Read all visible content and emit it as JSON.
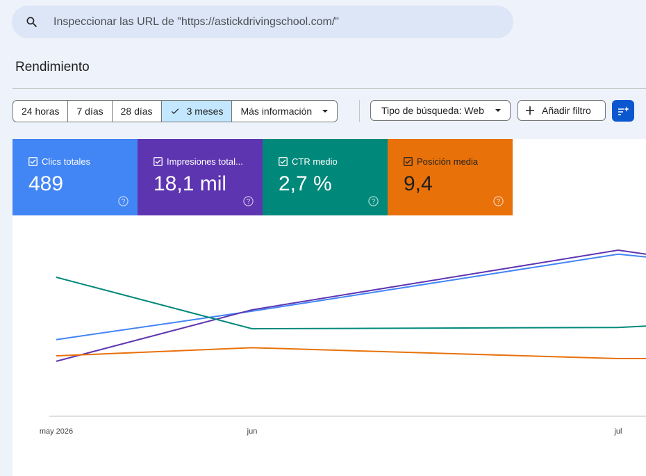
{
  "search": {
    "placeholder": "Inspeccionar las URL de \"https://astickdrivingschool.com/\""
  },
  "page_title": "Rendimiento",
  "date_ranges": {
    "options": [
      "24 horas",
      "7 días",
      "28 días",
      "3 meses",
      "Más información"
    ],
    "selected": "3 meses"
  },
  "search_type": "Tipo de búsqueda: Web",
  "add_filter": "Añadir filtro",
  "metrics": [
    {
      "label": "Clics totales",
      "value": "489",
      "color": "#4285f4",
      "checked": true
    },
    {
      "label": "Impresiones total...",
      "value": "18,1 mil",
      "color": "#5e35b1",
      "checked": true
    },
    {
      "label": "CTR medio",
      "value": "2,7 %",
      "color": "#00897b",
      "checked": true
    },
    {
      "label": "Posición media",
      "value": "9,4",
      "color": "#e8710a",
      "checked": true
    }
  ],
  "chart_data": {
    "type": "line",
    "x": [
      "may 2026",
      "jun",
      "jul",
      ""
    ],
    "x_ticks": [
      "may 2026",
      "jun",
      "jul"
    ],
    "series": [
      {
        "name": "Clics totales",
        "color": "#4285f4",
        "values": [
          0.34,
          0.55,
          0.97,
          0.95
        ]
      },
      {
        "name": "Impresiones totales",
        "color": "#5e35b1",
        "values": [
          0.18,
          0.56,
          1.0,
          0.97
        ]
      },
      {
        "name": "CTR medio",
        "color": "#00897b",
        "values": [
          0.8,
          0.42,
          0.43,
          0.44
        ]
      },
      {
        "name": "Posición media",
        "color": "#e8710a",
        "values": [
          0.22,
          0.28,
          0.2,
          0.2
        ]
      }
    ],
    "grid": false,
    "legend": "none"
  }
}
